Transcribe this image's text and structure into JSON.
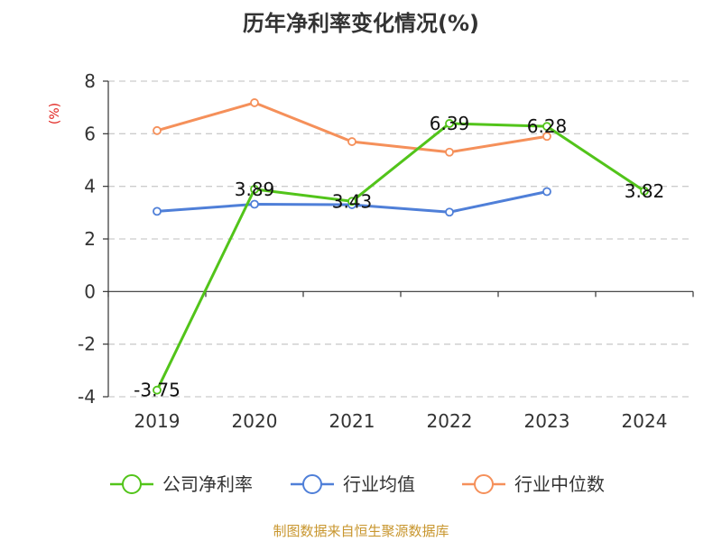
{
  "chart_data": {
    "type": "line",
    "title": "历年净利率变化情况(%)",
    "ylabel": "(%)",
    "xlabel": "",
    "categories": [
      "2019",
      "2020",
      "2021",
      "2022",
      "2023",
      "2024"
    ],
    "ylim": [
      -4,
      8
    ],
    "yticks": [
      -4,
      -2,
      0,
      2,
      4,
      6,
      8
    ],
    "grid": true,
    "legend_position": "bottom",
    "series": [
      {
        "name": "公司净利率",
        "color": "#52c41a",
        "values": [
          -3.75,
          3.89,
          3.43,
          6.39,
          6.28,
          3.82
        ],
        "labels": [
          "-3.75",
          "3.89",
          "3.43",
          "6.39",
          "6.28",
          "3.82"
        ]
      },
      {
        "name": "行业均值",
        "color": "#4f7fd8",
        "values": [
          3.05,
          3.32,
          3.3,
          3.02,
          3.8,
          null
        ]
      },
      {
        "name": "行业中位数",
        "color": "#f5905a",
        "values": [
          6.12,
          7.18,
          5.7,
          5.3,
          5.9,
          null
        ]
      }
    ]
  },
  "footer": {
    "source": "制图数据来自恒生聚源数据库"
  },
  "colors": {
    "ylabel": "#e0201b",
    "source": "#c8962e",
    "axis": "#333333",
    "grid": "#cccccc"
  }
}
